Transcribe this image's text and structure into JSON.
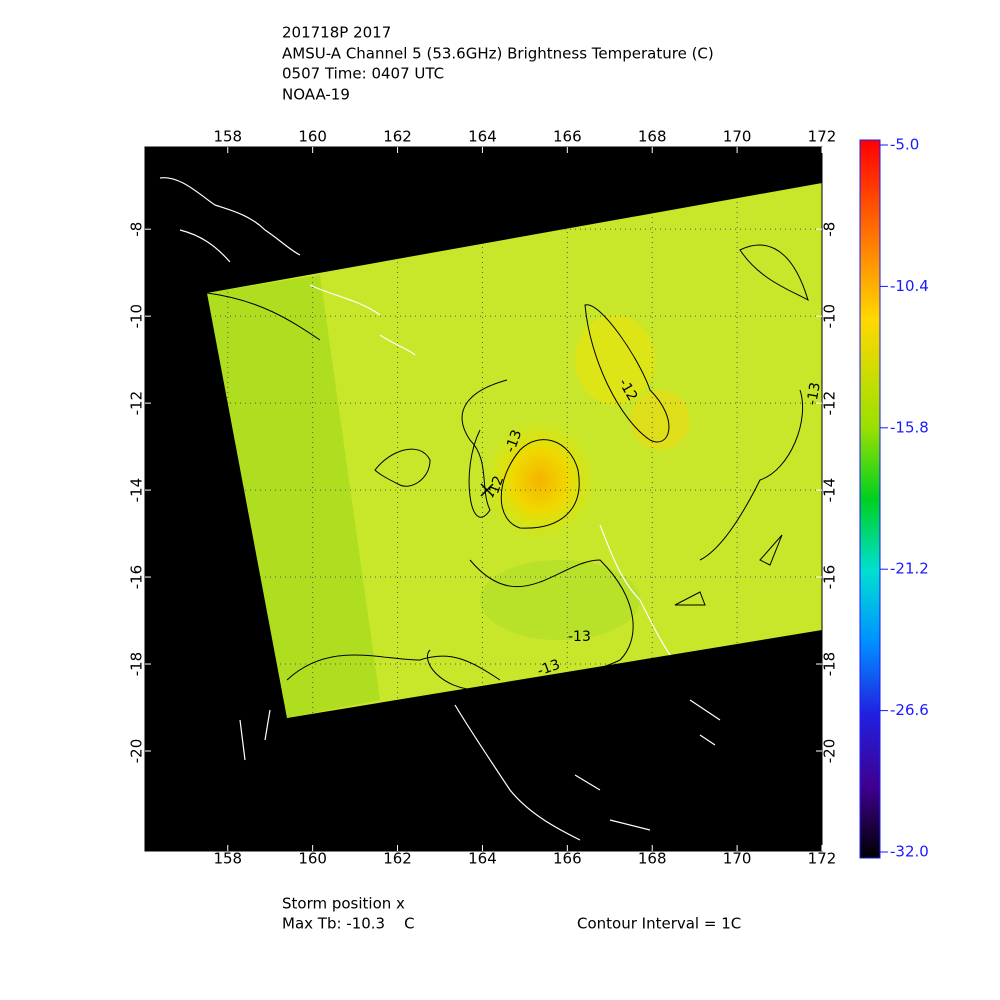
{
  "header": {
    "lines": [
      "201718P 2017",
      "AMSU-A Channel 5 (53.6GHz) Brightness Temperature (C)",
      "0507 Time: 0407 UTC",
      "NOAA-19"
    ]
  },
  "map": {
    "xlim": [
      156.05,
      172
    ],
    "ylim": [
      -22.3,
      -6.11
    ],
    "xticks": [
      158,
      160,
      162,
      164,
      166,
      168,
      170,
      172
    ],
    "yticks": [
      -8,
      -10,
      -12,
      -14,
      -16,
      -18,
      -20
    ],
    "grid": true,
    "contour_labels": [
      "-12",
      "-13",
      "-12",
      "-13",
      "-13",
      "-13"
    ]
  },
  "colorbar": {
    "lim": [
      -32,
      -5
    ],
    "ticks": [
      {
        "value": -5,
        "label": "-5.0"
      },
      {
        "value": -10.4,
        "label": "-10.4"
      },
      {
        "value": -15.8,
        "label": "-15.8"
      },
      {
        "value": -21.2,
        "label": "-21.2"
      },
      {
        "value": -26.6,
        "label": "-26.6"
      },
      {
        "value": -32,
        "label": "-32.0"
      }
    ]
  },
  "footer": {
    "storm": "Storm position x",
    "max_tb": "Max Tb: -10.3    C",
    "contour_interval": "Contour Interval = 1C"
  }
}
